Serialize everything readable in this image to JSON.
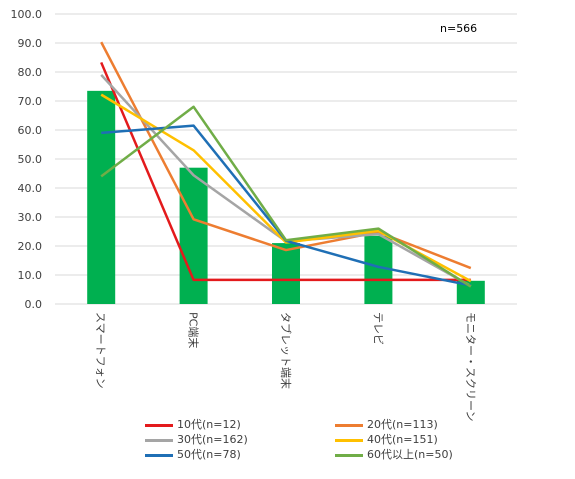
{
  "chart_data": {
    "type": "bar+line",
    "note": "n=566",
    "categories": [
      "スマートフォン",
      "PC端末",
      "タブレット端末",
      "テレビ",
      "モニター・スクリーン"
    ],
    "ylim": [
      0,
      100
    ],
    "yticks": [
      "0.0",
      "10.0",
      "20.0",
      "30.0",
      "40.0",
      "50.0",
      "60.0",
      "70.0",
      "80.0",
      "90.0",
      "100.0"
    ],
    "grid": true,
    "legend_placement": "bottom",
    "bars": {
      "name": "",
      "color": "#00b050",
      "values": [
        73.5,
        47.0,
        21.0,
        23.5,
        8.0
      ]
    },
    "series": [
      {
        "name": "10代(n=12)",
        "color": "#e31a1c",
        "values": [
          83.3,
          8.3,
          8.3,
          8.3,
          8.3
        ]
      },
      {
        "name": "20代(n=113)",
        "color": "#ed7d31",
        "values": [
          90.3,
          29.2,
          18.6,
          24.8,
          12.4
        ]
      },
      {
        "name": "30代(n=162)",
        "color": "#a5a5a5",
        "values": [
          79.0,
          44.4,
          21.6,
          24.1,
          6.2
        ]
      },
      {
        "name": "40代(n=151)",
        "color": "#ffc000",
        "values": [
          72.2,
          53.0,
          21.2,
          25.2,
          7.9
        ]
      },
      {
        "name": "50代(n=78)",
        "color": "#1f6fb5",
        "values": [
          59.0,
          61.5,
          21.8,
          12.8,
          6.4
        ]
      },
      {
        "name": "60代以上(n=50)",
        "color": "#70ad47",
        "values": [
          44.0,
          68.0,
          22.0,
          26.0,
          6.0
        ]
      }
    ]
  }
}
